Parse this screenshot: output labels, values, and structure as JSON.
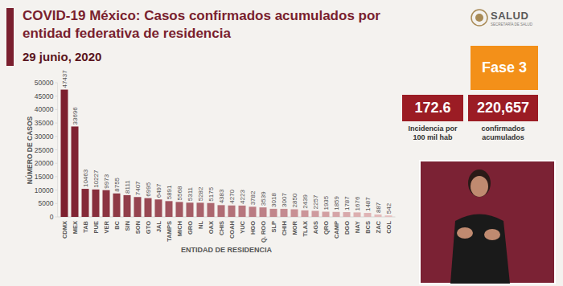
{
  "header": {
    "logo": "SALUD",
    "logo_subtitle": "SECRETARÍA DE SALUD"
  },
  "chart_data": {
    "type": "bar",
    "title": "COVID-19 México: Casos confirmados acumulados por entidad federativa de residencia",
    "subtitle": "29 junio, 2020",
    "x_label": "ENTIDAD DE RESIDENCIA",
    "y_label": "NÚMERO DE CASOS",
    "categories": [
      "CDMX",
      "MEX",
      "TAB",
      "PUE",
      "VER",
      "BC",
      "SIN",
      "SON",
      "GTO",
      "JAL",
      "TAMPS",
      "MICH",
      "GRO",
      "NL",
      "OAX",
      "CHIS",
      "COAH",
      "YUC",
      "HGO",
      "Q. ROO",
      "SLP",
      "CHIH",
      "MOR",
      "TLAX",
      "AGS",
      "QRO",
      "CAMP",
      "DGO",
      "NAY",
      "BCS",
      "ZAC",
      "COL"
    ],
    "values": [
      47437,
      33696,
      10463,
      10227,
      9973,
      8755,
      8111,
      7407,
      6995,
      6497,
      5891,
      5568,
      5311,
      5282,
      5175,
      4383,
      4270,
      4223,
      3782,
      3539,
      3018,
      3007,
      2850,
      2439,
      2257,
      1935,
      1859,
      1787,
      1676,
      1487,
      887,
      542
    ],
    "colors": [
      "#7d1f2e",
      "#802433",
      "#842937",
      "#872e3c",
      "#8b3441",
      "#8e3945",
      "#913e4a",
      "#95434f",
      "#984853",
      "#9c4d58",
      "#9f525d",
      "#a25761",
      "#a65d66",
      "#a9626b",
      "#ac676f",
      "#b06c74",
      "#b37178",
      "#b7767d",
      "#ba7b82",
      "#bd8086",
      "#c1868b",
      "#c48b90",
      "#c89094",
      "#cb9599",
      "#ce9a9e",
      "#d29fa2",
      "#d5a4a7",
      "#d8a9ab",
      "#dcafb0",
      "#dfb4b5",
      "#e3b9b9",
      "#e6bebe"
    ],
    "ylim": [
      0,
      50000
    ],
    "yticks": [
      0,
      5000,
      10000,
      15000,
      20000,
      25000,
      30000,
      35000,
      40000,
      45000,
      50000
    ],
    "grid": false,
    "data_labels": true
  },
  "panel": {
    "phase": "Fase 3",
    "incidence": {
      "value": 172.6,
      "label": "Incidencia por 100 mil hab"
    },
    "confirmed": {
      "value": 220657,
      "value_label": "220,657",
      "label": "confirmados acumulados"
    }
  }
}
